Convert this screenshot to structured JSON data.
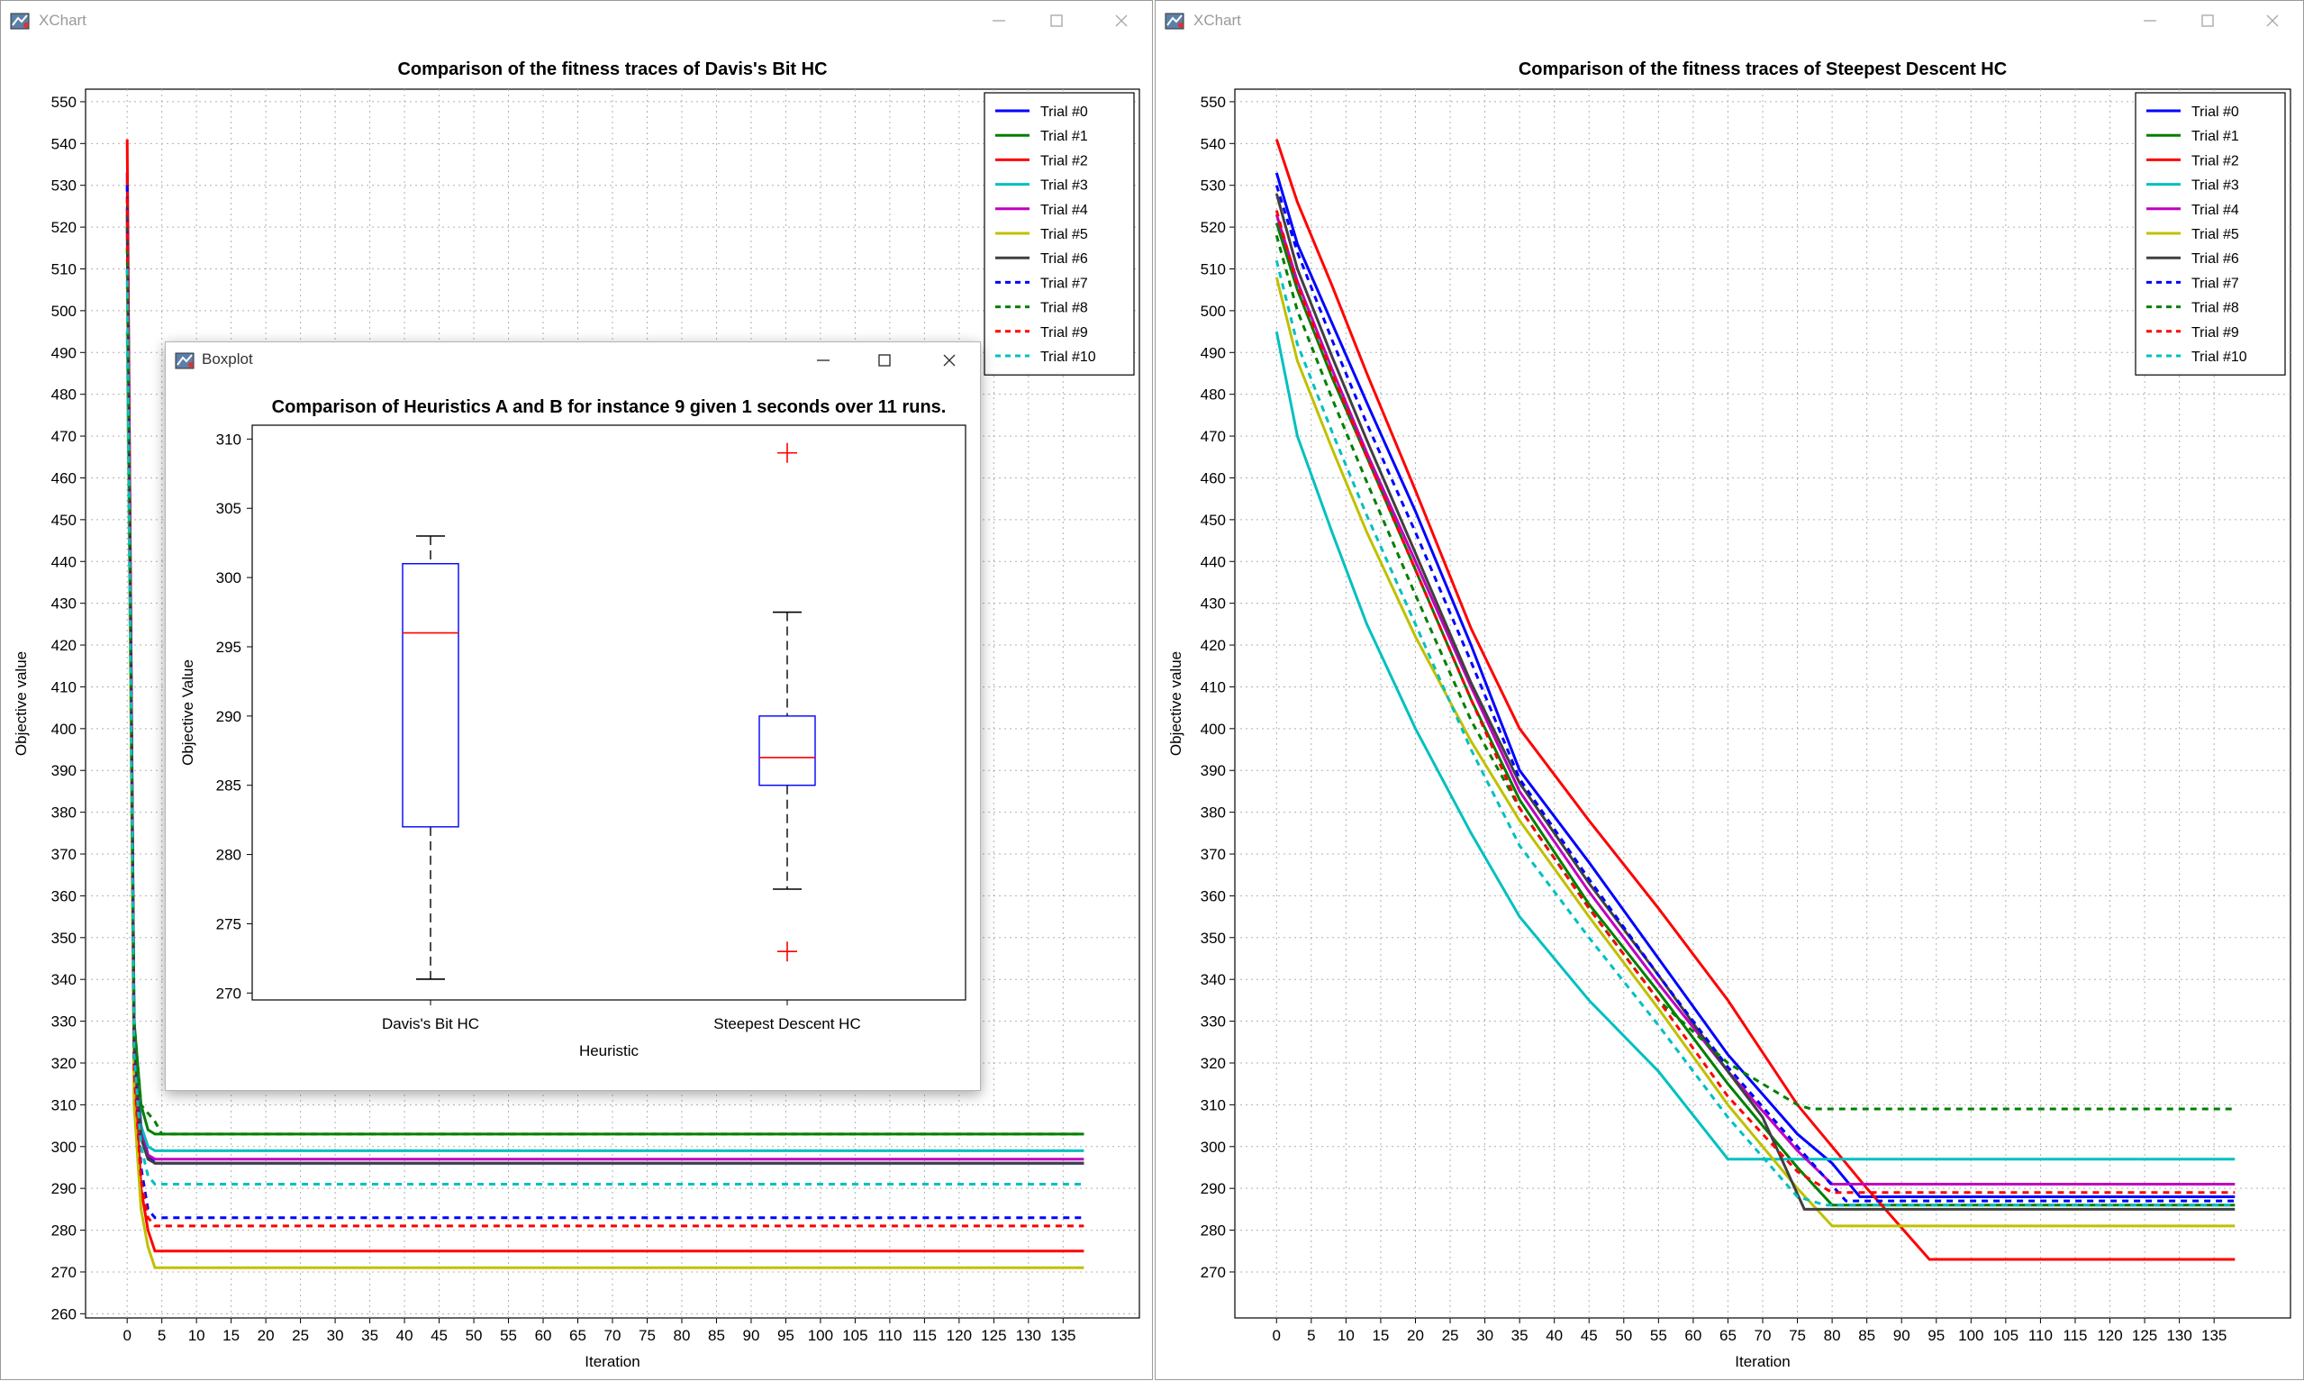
{
  "windows": [
    {
      "app_title": "XChart",
      "chart_data": {
        "type": "line",
        "title": "Comparison of the fitness traces of Davis's Bit HC",
        "xlabel": "Iteration",
        "ylabel": "Objective value",
        "xlim": [
          -6,
          146
        ],
        "ylim": [
          259,
          553
        ],
        "x_ticks": [
          0,
          5,
          10,
          15,
          20,
          25,
          30,
          35,
          40,
          45,
          50,
          55,
          60,
          65,
          70,
          75,
          80,
          85,
          90,
          95,
          100,
          105,
          110,
          115,
          120,
          125,
          130,
          135
        ],
        "y_ticks": [
          260,
          270,
          280,
          290,
          300,
          310,
          320,
          330,
          340,
          350,
          360,
          370,
          380,
          390,
          400,
          410,
          420,
          430,
          440,
          450,
          460,
          470,
          480,
          490,
          500,
          510,
          520,
          530,
          540,
          550
        ],
        "grid": true,
        "legend_position": "top-right",
        "series": [
          {
            "name": "Trial #0",
            "color": "#0000ff",
            "dashed": false,
            "x": [
              0,
              1,
              2,
              3,
              4,
              138
            ],
            "y": [
              533,
              330,
              305,
              298,
              296,
              296
            ]
          },
          {
            "name": "Trial #1",
            "color": "#008000",
            "dashed": false,
            "x": [
              0,
              1,
              2,
              3,
              4,
              138
            ],
            "y": [
              520,
              330,
              310,
              304,
              303,
              303
            ]
          },
          {
            "name": "Trial #2",
            "color": "#ff0000",
            "dashed": false,
            "x": [
              0,
              1,
              2,
              3,
              4,
              138
            ],
            "y": [
              541,
              320,
              290,
              280,
              275,
              275
            ]
          },
          {
            "name": "Trial #3",
            "color": "#00c0c0",
            "dashed": false,
            "x": [
              0,
              1,
              2,
              3,
              4,
              138
            ],
            "y": [
              495,
              325,
              305,
              300,
              299,
              299
            ]
          },
          {
            "name": "Trial #4",
            "color": "#c000c0",
            "dashed": false,
            "x": [
              0,
              1,
              2,
              3,
              4,
              138
            ],
            "y": [
              523,
              325,
              303,
              298,
              297,
              297
            ]
          },
          {
            "name": "Trial #5",
            "color": "#c0c000",
            "dashed": false,
            "x": [
              0,
              1,
              2,
              3,
              4,
              138
            ],
            "y": [
              510,
              310,
              285,
              276,
              271,
              271
            ]
          },
          {
            "name": "Trial #6",
            "color": "#404040",
            "dashed": false,
            "x": [
              0,
              1,
              2,
              3,
              4,
              138
            ],
            "y": [
              525,
              325,
              302,
              297,
              296,
              296
            ]
          },
          {
            "name": "Trial #7",
            "color": "#0000ff",
            "dashed": true,
            "x": [
              0,
              1,
              2,
              3,
              4,
              138
            ],
            "y": [
              530,
              320,
              295,
              285,
              283,
              283
            ]
          },
          {
            "name": "Trial #8",
            "color": "#008000",
            "dashed": true,
            "x": [
              0,
              1,
              2,
              3,
              4,
              5,
              138
            ],
            "y": [
              515,
              330,
              310,
              308,
              306,
              303,
              303
            ]
          },
          {
            "name": "Trial #9",
            "color": "#ff0000",
            "dashed": true,
            "x": [
              0,
              1,
              2,
              3,
              4,
              138
            ],
            "y": [
              527,
              318,
              292,
              283,
              281,
              281
            ]
          },
          {
            "name": "Trial #10",
            "color": "#00c0c0",
            "dashed": true,
            "x": [
              0,
              1,
              2,
              3,
              4,
              138
            ],
            "y": [
              510,
              322,
              300,
              293,
              291,
              291
            ]
          }
        ]
      }
    },
    {
      "app_title": "XChart",
      "chart_data": {
        "type": "line",
        "title": "Comparison of the fitness traces of Steepest Descent HC",
        "xlabel": "Iteration",
        "ylabel": "Objective value",
        "xlim": [
          -6,
          146
        ],
        "ylim": [
          259,
          553
        ],
        "x_ticks": [
          0,
          5,
          10,
          15,
          20,
          25,
          30,
          35,
          40,
          45,
          50,
          55,
          60,
          65,
          70,
          75,
          80,
          85,
          90,
          95,
          100,
          105,
          110,
          115,
          120,
          125,
          130,
          135
        ],
        "y_ticks": [
          270,
          280,
          290,
          300,
          310,
          320,
          330,
          340,
          350,
          360,
          370,
          380,
          390,
          400,
          410,
          420,
          430,
          440,
          450,
          460,
          470,
          480,
          490,
          500,
          510,
          520,
          530,
          540,
          550
        ],
        "grid": true,
        "legend_position": "top-right",
        "series": [
          {
            "name": "Trial #0",
            "color": "#0000ff",
            "dashed": false,
            "x": [
              0,
              3,
              8,
              13,
              20,
              28,
              35,
              45,
              55,
              65,
              75,
              80,
              84,
              138
            ],
            "y": [
              533,
              516,
              497,
              478,
              452,
              420,
              390,
              368,
              345,
              322,
              303,
              296,
              288,
              288
            ]
          },
          {
            "name": "Trial #1",
            "color": "#008000",
            "dashed": false,
            "x": [
              0,
              3,
              8,
              13,
              20,
              28,
              35,
              45,
              55,
              65,
              75,
              80,
              138
            ],
            "y": [
              521,
              505,
              484,
              465,
              438,
              407,
              383,
              358,
              337,
              315,
              295,
              286,
              286
            ]
          },
          {
            "name": "Trial #2",
            "color": "#ff0000",
            "dashed": false,
            "x": [
              0,
              3,
              8,
              13,
              20,
              28,
              35,
              45,
              55,
              65,
              75,
              85,
              94,
              138
            ],
            "y": [
              541,
              526,
              506,
              485,
              457,
              424,
              400,
              378,
              357,
              335,
              310,
              290,
              273,
              273
            ]
          },
          {
            "name": "Trial #3",
            "color": "#00c0c0",
            "dashed": false,
            "x": [
              0,
              3,
              8,
              13,
              20,
              28,
              35,
              45,
              55,
              65,
              138
            ],
            "y": [
              495,
              470,
              447,
              425,
              400,
              375,
              355,
              335,
              318,
              297,
              297
            ]
          },
          {
            "name": "Trial #4",
            "color": "#c000c0",
            "dashed": false,
            "x": [
              0,
              3,
              8,
              13,
              20,
              28,
              35,
              45,
              55,
              65,
              75,
              80,
              138
            ],
            "y": [
              523,
              507,
              486,
              466,
              440,
              410,
              385,
              361,
              339,
              318,
              299,
              291,
              291
            ]
          },
          {
            "name": "Trial #5",
            "color": "#c0c000",
            "dashed": false,
            "x": [
              0,
              3,
              8,
              13,
              20,
              28,
              35,
              45,
              55,
              65,
              75,
              80,
              138
            ],
            "y": [
              508,
              488,
              467,
              447,
              422,
              397,
              378,
              355,
              333,
              310,
              290,
              281,
              281
            ]
          },
          {
            "name": "Trial #6",
            "color": "#404040",
            "dashed": false,
            "x": [
              0,
              3,
              8,
              13,
              20,
              28,
              35,
              45,
              55,
              65,
              70,
              76,
              138
            ],
            "y": [
              528,
              510,
              489,
              469,
              442,
              411,
              387,
              363,
              341,
              318,
              307,
              285,
              285
            ]
          },
          {
            "name": "Trial #7",
            "color": "#0000ff",
            "dashed": true,
            "x": [
              0,
              3,
              8,
              13,
              20,
              28,
              35,
              45,
              55,
              65,
              75,
              82,
              138
            ],
            "y": [
              530,
              514,
              493,
              473,
              447,
              416,
              388,
              364,
              341,
              319,
              300,
              287,
              287
            ]
          },
          {
            "name": "Trial #8",
            "color": "#008000",
            "dashed": true,
            "x": [
              0,
              3,
              8,
              13,
              20,
              28,
              35,
              45,
              55,
              65,
              75,
              77,
              138
            ],
            "y": [
              518,
              500,
              479,
              459,
              432,
              402,
              381,
              357,
              335,
              320,
              310,
              309,
              309
            ]
          },
          {
            "name": "Trial #9",
            "color": "#ff0000",
            "dashed": true,
            "x": [
              0,
              3,
              8,
              13,
              20,
              28,
              35,
              45,
              55,
              65,
              75,
              80,
              138
            ],
            "y": [
              524,
              506,
              485,
              465,
              438,
              407,
              381,
              357,
              335,
              312,
              294,
              289,
              289
            ]
          },
          {
            "name": "Trial #10",
            "color": "#00c0c0",
            "dashed": true,
            "x": [
              0,
              3,
              8,
              13,
              20,
              28,
              35,
              45,
              55,
              65,
              75,
              79,
              138
            ],
            "y": [
              512,
              492,
              471,
              451,
              425,
              395,
              372,
              350,
              329,
              307,
              288,
              286,
              286
            ]
          }
        ]
      }
    }
  ],
  "popup": {
    "app_title": "Boxplot",
    "chart_data": {
      "type": "box",
      "title": "Comparison of Heuristics A and B for instance 9 given 1 seconds over 11 runs.",
      "xlabel": "Heuristic",
      "ylabel": "Objective Value",
      "ylim": [
        269.5,
        311
      ],
      "y_ticks": [
        270,
        275,
        280,
        285,
        290,
        295,
        300,
        305,
        310
      ],
      "boxes": [
        {
          "name": "Davis's Bit HC",
          "whisker_low": 271,
          "q1": 282,
          "median": 296,
          "q3": 301,
          "whisker_high": 303,
          "outliers": []
        },
        {
          "name": "Steepest Descent HC",
          "whisker_low": 277.5,
          "q1": 285,
          "median": 287,
          "q3": 290,
          "whisker_high": 297.5,
          "outliers": [
            273,
            309
          ]
        }
      ],
      "colors": {
        "box": "#0000ff",
        "median": "#ff0000",
        "whisker": "#000000",
        "outlier": "#ff0000"
      }
    }
  }
}
